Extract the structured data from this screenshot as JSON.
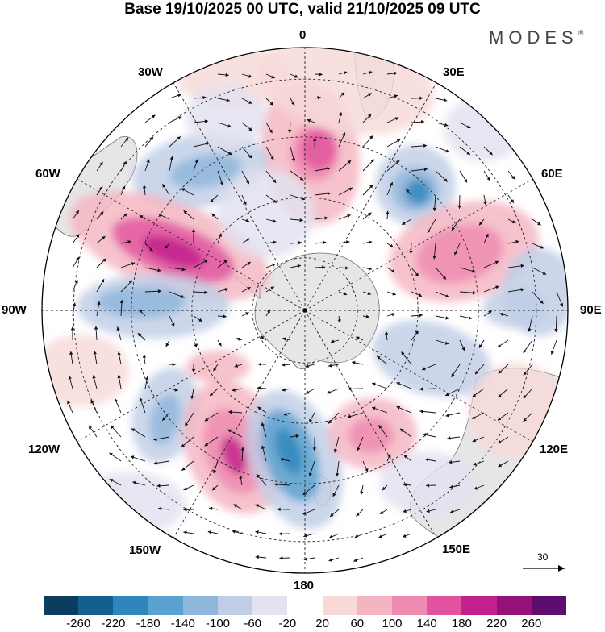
{
  "title": "Base 19/10/2025 00 UTC, valid 21/10/2025 09 UTC",
  "brand": "MODES",
  "brand_mark": "®",
  "longitude_labels": {
    "lon_0": "0",
    "lon_30e": "30E",
    "lon_60e": "60E",
    "lon_90e": "90E",
    "lon_120e": "120E",
    "lon_150e": "150E",
    "lon_180": "180",
    "lon_150w": "150W",
    "lon_120w": "120W",
    "lon_90w": "90W",
    "lon_60w": "60W",
    "lon_30w": "30W"
  },
  "vector_scale": {
    "value": "30",
    "icon": "reference-arrow-icon"
  },
  "colorbar": {
    "colors": [
      "#0c3c5e",
      "#13608f",
      "#2e86bd",
      "#5aa2cf",
      "#8fb7dc",
      "#c0cde6",
      "#e2e2f0",
      "#ffffff",
      "#f7d9d8",
      "#f4b4c1",
      "#ef8ab0",
      "#e2539f",
      "#c2218b",
      "#951177",
      "#5e0d6e"
    ],
    "tick_labels": [
      "-260",
      "-220",
      "-180",
      "-140",
      "-100",
      "-60",
      "-20",
      "20",
      "60",
      "100",
      "140",
      "180",
      "220",
      "260"
    ]
  },
  "map_colors": {
    "land": "#e6e6e6",
    "coast": "#707070",
    "grid": "#222222",
    "arrow": "#111111"
  }
}
